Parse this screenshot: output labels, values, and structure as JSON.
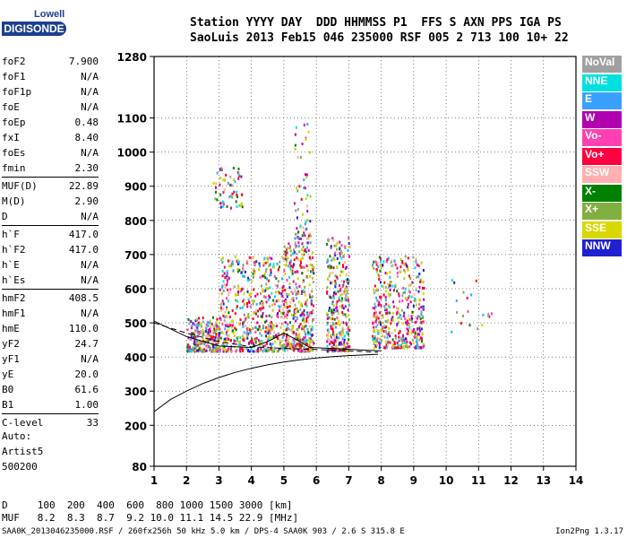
{
  "logo": {
    "line1": "Lowell",
    "line2": "DIGISONDE"
  },
  "header": {
    "line1": "Station YYYY DAY  DDD HHMMSS P1  FFS S AXN PPS IGA PS",
    "line2": "SaoLuis 2013 Feb15 046 235000 RSF 005 2 713 100 10+ 22"
  },
  "params": [
    {
      "name": "foF2",
      "value": "7.900"
    },
    {
      "name": "foF1",
      "value": "N/A"
    },
    {
      "name": "foF1p",
      "value": "N/A"
    },
    {
      "name": "foE",
      "value": "N/A"
    },
    {
      "name": "foEp",
      "value": "0.48"
    },
    {
      "name": "fxI",
      "value": "8.40"
    },
    {
      "name": "foEs",
      "value": "N/A"
    },
    {
      "name": "fmin",
      "value": "2.30"
    },
    {
      "name": "MUF(D)",
      "value": "22.89"
    },
    {
      "name": "M(D)",
      "value": "2.90"
    },
    {
      "name": "D",
      "value": "N/A"
    },
    {
      "name": "h`F",
      "value": "417.0"
    },
    {
      "name": "h`F2",
      "value": "417.0"
    },
    {
      "name": "h`E",
      "value": "N/A"
    },
    {
      "name": "h`Es",
      "value": "N/A"
    },
    {
      "name": "hmF2",
      "value": "408.5"
    },
    {
      "name": "hmF1",
      "value": "N/A"
    },
    {
      "name": "hmE",
      "value": "110.0"
    },
    {
      "name": "yF2",
      "value": "24.7"
    },
    {
      "name": "yF1",
      "value": "N/A"
    },
    {
      "name": "yE",
      "value": "20.0"
    },
    {
      "name": "B0",
      "value": "61.6"
    },
    {
      "name": "B1",
      "value": "1.00"
    },
    {
      "name": "C-level",
      "value": "33"
    }
  ],
  "auto": {
    "l1": "Auto:",
    "l2": "Artist5",
    "l3": "500200"
  },
  "legend": [
    {
      "label": "NoVal",
      "color": "#a0a0a0"
    },
    {
      "label": "NNE",
      "color": "#00e0e0"
    },
    {
      "label": "E",
      "color": "#3aa0ff"
    },
    {
      "label": "W",
      "color": "#b000b0"
    },
    {
      "label": "Vo-",
      "color": "#ff40b0"
    },
    {
      "label": "Vo+",
      "color": "#ff0040"
    },
    {
      "label": "SSW",
      "color": "#ffb0b0"
    },
    {
      "label": "X-",
      "color": "#008000"
    },
    {
      "label": "X+",
      "color": "#80b040"
    },
    {
      "label": "SSE",
      "color": "#d8d800"
    },
    {
      "label": "NNW",
      "color": "#2020d0"
    }
  ],
  "footer_table": {
    "row1": "D     100  200  400  600  800 1000 1500 3000 [km]",
    "row2": "MUF   8.2  8.3  8.7  9.2 10.0 11.1 14.5 22.9 [MHz]"
  },
  "footer": "SAA0K_2013046235000.RSF / 260fx256h 50 kHz 5.0 km / DPS-4 SAA0K 903 / 2.6 S 315.8 E",
  "version": "Ion2Png 1.3.17",
  "chart_data": {
    "type": "scatter",
    "x_ticks": [
      1,
      2,
      3,
      4,
      5,
      6,
      7,
      8,
      9,
      10,
      11,
      12,
      13,
      14
    ],
    "y_ticks": [
      80,
      200,
      300,
      400,
      500,
      600,
      700,
      800,
      900,
      1000,
      1100,
      1280
    ],
    "xlim": [
      1,
      14
    ],
    "ylim": [
      80,
      1280
    ],
    "grid": true,
    "clusters": [
      {
        "xmin": 2.0,
        "xmax": 3.0,
        "ymin": 420,
        "ymax": 520,
        "n": 260
      },
      {
        "xmin": 3.0,
        "xmax": 4.9,
        "ymin": 420,
        "ymax": 700,
        "n": 520
      },
      {
        "xmin": 2.8,
        "xmax": 3.7,
        "ymin": 840,
        "ymax": 960,
        "n": 60
      },
      {
        "xmin": 4.9,
        "xmax": 5.9,
        "ymin": 420,
        "ymax": 740,
        "n": 420
      },
      {
        "xmin": 5.3,
        "xmax": 5.8,
        "ymin": 750,
        "ymax": 1090,
        "n": 60
      },
      {
        "xmin": 6.3,
        "xmax": 7.0,
        "ymin": 420,
        "ymax": 760,
        "n": 300
      },
      {
        "xmin": 7.7,
        "xmax": 9.3,
        "ymin": 430,
        "ymax": 700,
        "n": 450
      },
      {
        "xmin": 10.0,
        "xmax": 11.4,
        "ymin": 470,
        "ymax": 640,
        "n": 20
      }
    ],
    "profile": {
      "x": [
        1.0,
        1.5,
        2.0,
        2.5,
        3.0,
        3.5,
        4.0,
        4.5,
        5.0,
        5.5,
        6.0,
        6.5,
        7.0,
        7.5,
        7.9
      ],
      "y": [
        240,
        275,
        300,
        322,
        340,
        355,
        367,
        377,
        385,
        392,
        397,
        401,
        404,
        406,
        408
      ]
    },
    "trace": {
      "x": [
        1.0,
        2.0,
        3.0,
        4.0,
        4.5,
        5.0,
        5.4,
        5.8,
        6.5,
        7.5,
        8.0
      ],
      "y": [
        505,
        460,
        432,
        428,
        445,
        470,
        450,
        428,
        425,
        420,
        418
      ]
    },
    "dashed": {
      "x": [
        1.0,
        2.0,
        3.0,
        4.0,
        5.0,
        6.0,
        7.0,
        7.9
      ],
      "y": [
        500,
        470,
        445,
        430,
        425,
        422,
        418,
        414
      ]
    }
  }
}
